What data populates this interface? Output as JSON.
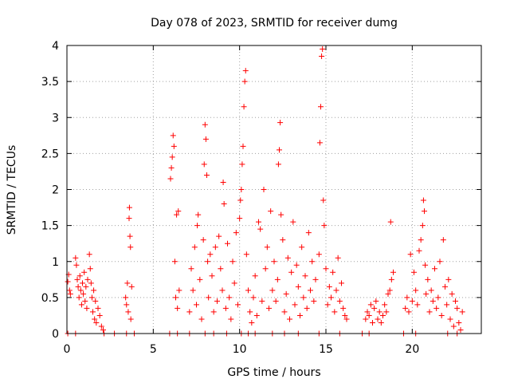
{
  "chart_data": {
    "type": "scatter",
    "title": "Day 078 of 2023, SRMTID for receiver dumg",
    "xlabel": "GPS time / hours",
    "ylabel": "SRMTID / TECUs",
    "xlim": [
      0,
      24
    ],
    "ylim": [
      0,
      4
    ],
    "x_ticks": [
      0,
      5,
      10,
      15,
      20
    ],
    "x_tick_labels": [
      "0",
      "5",
      "10",
      "15",
      "20"
    ],
    "y_ticks": [
      0,
      0.5,
      1,
      1.5,
      2,
      2.5,
      3,
      3.5,
      4
    ],
    "y_tick_labels": [
      "0",
      "0.5",
      "1",
      "1.5",
      "2",
      "2.5",
      "3",
      "3.5",
      "4"
    ],
    "grid": true,
    "marker": "+",
    "series": [
      {
        "name": "SRMTID",
        "color": "#ff0000",
        "points": [
          [
            0.05,
            0.72
          ],
          [
            0.1,
            0.82
          ],
          [
            0.15,
            0.6
          ],
          [
            0.2,
            0.55
          ],
          [
            0.5,
            1.05
          ],
          [
            0.55,
            0.95
          ],
          [
            0.6,
            0.75
          ],
          [
            0.65,
            0.65
          ],
          [
            0.7,
            0.5
          ],
          [
            0.75,
            0.8
          ],
          [
            0.8,
            0.6
          ],
          [
            0.85,
            0.4
          ],
          [
            0.9,
            0.7
          ],
          [
            0.95,
            0.55
          ],
          [
            1.0,
            0.85
          ],
          [
            1.05,
            0.45
          ],
          [
            1.1,
            0.65
          ],
          [
            1.15,
            0.35
          ],
          [
            1.2,
            0.75
          ],
          [
            1.3,
            1.1
          ],
          [
            1.35,
            0.9
          ],
          [
            1.4,
            0.7
          ],
          [
            1.45,
            0.5
          ],
          [
            1.5,
            0.3
          ],
          [
            1.55,
            0.6
          ],
          [
            1.6,
            0.2
          ],
          [
            1.65,
            0.45
          ],
          [
            1.7,
            0.15
          ],
          [
            1.8,
            0.35
          ],
          [
            1.9,
            0.25
          ],
          [
            2.0,
            0.1
          ],
          [
            2.1,
            0.05
          ],
          [
            3.4,
            0.5
          ],
          [
            3.45,
            0.4
          ],
          [
            3.5,
            0.7
          ],
          [
            3.55,
            0.3
          ],
          [
            3.6,
            1.6
          ],
          [
            3.62,
            1.75
          ],
          [
            3.65,
            1.35
          ],
          [
            3.68,
            1.2
          ],
          [
            3.7,
            0.2
          ],
          [
            3.75,
            0.65
          ],
          [
            6.0,
            2.15
          ],
          [
            6.05,
            2.3
          ],
          [
            6.1,
            2.45
          ],
          [
            6.15,
            2.75
          ],
          [
            6.2,
            2.6
          ],
          [
            6.25,
            1.0
          ],
          [
            6.3,
            0.5
          ],
          [
            6.35,
            1.65
          ],
          [
            6.4,
            0.35
          ],
          [
            6.45,
            1.7
          ],
          [
            6.5,
            0.6
          ],
          [
            7.1,
            0.3
          ],
          [
            7.2,
            0.9
          ],
          [
            7.3,
            0.6
          ],
          [
            7.4,
            1.2
          ],
          [
            7.5,
            0.4
          ],
          [
            7.55,
            1.5
          ],
          [
            7.6,
            1.65
          ],
          [
            7.7,
            0.75
          ],
          [
            7.8,
            0.2
          ],
          [
            7.9,
            1.3
          ],
          [
            7.95,
            2.35
          ],
          [
            8.0,
            2.9
          ],
          [
            8.05,
            2.7
          ],
          [
            8.1,
            2.2
          ],
          [
            8.15,
            1.0
          ],
          [
            8.2,
            0.5
          ],
          [
            8.3,
            1.1
          ],
          [
            8.4,
            0.8
          ],
          [
            8.5,
            0.3
          ],
          [
            8.6,
            1.2
          ],
          [
            8.7,
            0.45
          ],
          [
            8.8,
            1.35
          ],
          [
            8.9,
            0.9
          ],
          [
            9.0,
            0.6
          ],
          [
            9.05,
            2.1
          ],
          [
            9.1,
            1.8
          ],
          [
            9.2,
            0.35
          ],
          [
            9.3,
            1.25
          ],
          [
            9.4,
            0.5
          ],
          [
            9.5,
            0.2
          ],
          [
            9.6,
            1.0
          ],
          [
            9.7,
            0.7
          ],
          [
            9.8,
            1.4
          ],
          [
            9.9,
            0.4
          ],
          [
            10.0,
            1.6
          ],
          [
            10.05,
            1.85
          ],
          [
            10.1,
            2.0
          ],
          [
            10.15,
            2.35
          ],
          [
            10.2,
            2.6
          ],
          [
            10.25,
            3.15
          ],
          [
            10.3,
            3.5
          ],
          [
            10.35,
            3.65
          ],
          [
            10.4,
            1.1
          ],
          [
            10.5,
            0.6
          ],
          [
            10.6,
            0.3
          ],
          [
            10.7,
            0.15
          ],
          [
            10.8,
            0.5
          ],
          [
            10.9,
            0.8
          ],
          [
            11.0,
            0.25
          ],
          [
            11.1,
            1.55
          ],
          [
            11.2,
            1.45
          ],
          [
            11.3,
            0.45
          ],
          [
            11.4,
            2.0
          ],
          [
            11.5,
            0.9
          ],
          [
            11.6,
            1.2
          ],
          [
            11.7,
            0.35
          ],
          [
            11.8,
            1.7
          ],
          [
            11.9,
            0.6
          ],
          [
            12.0,
            1.0
          ],
          [
            12.1,
            0.45
          ],
          [
            12.2,
            0.75
          ],
          [
            12.25,
            2.35
          ],
          [
            12.3,
            2.55
          ],
          [
            12.35,
            2.93
          ],
          [
            12.4,
            1.65
          ],
          [
            12.5,
            1.3
          ],
          [
            12.6,
            0.3
          ],
          [
            12.7,
            0.55
          ],
          [
            12.8,
            1.05
          ],
          [
            12.9,
            0.2
          ],
          [
            13.0,
            0.85
          ],
          [
            13.1,
            1.55
          ],
          [
            13.2,
            0.4
          ],
          [
            13.3,
            0.95
          ],
          [
            13.4,
            0.65
          ],
          [
            13.5,
            0.25
          ],
          [
            13.6,
            1.2
          ],
          [
            13.7,
            0.5
          ],
          [
            13.8,
            0.8
          ],
          [
            13.9,
            0.35
          ],
          [
            14.0,
            1.4
          ],
          [
            14.1,
            0.6
          ],
          [
            14.2,
            1.0
          ],
          [
            14.3,
            0.45
          ],
          [
            14.4,
            0.75
          ],
          [
            14.6,
            1.1
          ],
          [
            14.65,
            2.65
          ],
          [
            14.7,
            3.15
          ],
          [
            14.75,
            3.85
          ],
          [
            14.8,
            3.95
          ],
          [
            14.85,
            1.85
          ],
          [
            14.9,
            1.5
          ],
          [
            15.0,
            0.9
          ],
          [
            15.1,
            0.4
          ],
          [
            15.2,
            0.65
          ],
          [
            15.3,
            0.5
          ],
          [
            15.4,
            0.85
          ],
          [
            15.5,
            0.3
          ],
          [
            15.6,
            0.6
          ],
          [
            15.7,
            1.05
          ],
          [
            15.8,
            0.45
          ],
          [
            15.9,
            0.7
          ],
          [
            16.0,
            0.35
          ],
          [
            16.1,
            0.25
          ],
          [
            16.2,
            0.2
          ],
          [
            17.3,
            0.2
          ],
          [
            17.4,
            0.3
          ],
          [
            17.5,
            0.25
          ],
          [
            17.6,
            0.4
          ],
          [
            17.7,
            0.15
          ],
          [
            17.8,
            0.35
          ],
          [
            17.9,
            0.45
          ],
          [
            18.0,
            0.2
          ],
          [
            18.1,
            0.3
          ],
          [
            18.2,
            0.15
          ],
          [
            18.3,
            0.25
          ],
          [
            18.4,
            0.4
          ],
          [
            18.5,
            0.3
          ],
          [
            18.6,
            0.55
          ],
          [
            18.7,
            0.6
          ],
          [
            18.75,
            1.55
          ],
          [
            18.8,
            0.75
          ],
          [
            18.9,
            0.85
          ],
          [
            19.6,
            0.35
          ],
          [
            19.7,
            0.5
          ],
          [
            19.8,
            0.3
          ],
          [
            19.9,
            1.1
          ],
          [
            20.0,
            0.45
          ],
          [
            20.1,
            0.85
          ],
          [
            20.2,
            0.6
          ],
          [
            20.3,
            0.4
          ],
          [
            20.4,
            1.15
          ],
          [
            20.5,
            1.3
          ],
          [
            20.6,
            1.5
          ],
          [
            20.65,
            1.85
          ],
          [
            20.7,
            1.7
          ],
          [
            20.75,
            0.95
          ],
          [
            20.8,
            0.55
          ],
          [
            20.9,
            0.75
          ],
          [
            21.0,
            0.3
          ],
          [
            21.1,
            0.6
          ],
          [
            21.2,
            0.45
          ],
          [
            21.3,
            0.9
          ],
          [
            21.4,
            0.35
          ],
          [
            21.5,
            0.5
          ],
          [
            21.6,
            1.0
          ],
          [
            21.7,
            0.25
          ],
          [
            21.8,
            1.3
          ],
          [
            21.9,
            0.65
          ],
          [
            22.0,
            0.4
          ],
          [
            22.1,
            0.75
          ],
          [
            22.2,
            0.2
          ],
          [
            22.3,
            0.55
          ],
          [
            22.4,
            0.1
          ],
          [
            22.5,
            0.45
          ],
          [
            22.6,
            0.35
          ],
          [
            22.7,
            0.15
          ],
          [
            22.8,
            0.05
          ],
          [
            22.9,
            0.3
          ],
          [
            0.05,
            0.0
          ],
          [
            0.5,
            0.0
          ],
          [
            2.15,
            0.0
          ],
          [
            2.75,
            0.0
          ],
          [
            3.45,
            0.0
          ],
          [
            3.9,
            0.0
          ],
          [
            5.95,
            0.0
          ],
          [
            6.4,
            0.0
          ],
          [
            7.1,
            0.0
          ],
          [
            8.0,
            0.0
          ],
          [
            8.5,
            0.0
          ],
          [
            9.25,
            0.0
          ],
          [
            10.1,
            0.0
          ],
          [
            10.5,
            0.0
          ],
          [
            10.9,
            0.0
          ],
          [
            11.9,
            0.0
          ],
          [
            12.6,
            0.0
          ],
          [
            13.4,
            0.0
          ],
          [
            14.6,
            0.0
          ],
          [
            15.8,
            0.0
          ],
          [
            17.1,
            0.0
          ],
          [
            17.5,
            0.0
          ],
          [
            19.5,
            0.0
          ],
          [
            20.2,
            0.0
          ],
          [
            22.05,
            0.0
          ],
          [
            22.6,
            0.0
          ]
        ]
      }
    ]
  }
}
